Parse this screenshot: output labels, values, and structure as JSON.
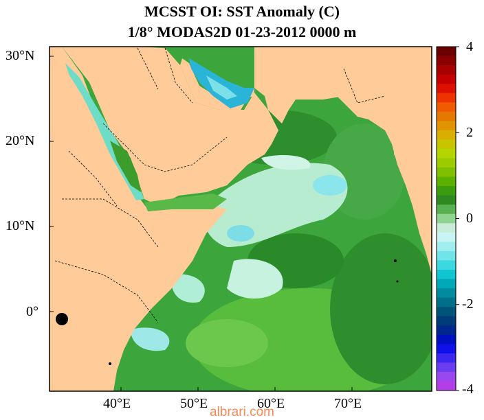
{
  "title_line1": "MCSST OI:  SST Anomaly (C)",
  "title_line2": "1/8° MODAS2D 01-23-2012 0000 m",
  "lat_labels": [
    "30°N",
    "20°N",
    "10°N",
    "0°"
  ],
  "lon_labels": [
    "40°E",
    "50°E",
    "60°E",
    "70°E"
  ],
  "colorbar": {
    "labels": [
      "4",
      "2",
      "0",
      "-2",
      "-4"
    ],
    "min": -4,
    "max": 4,
    "colors": [
      "#6a0000",
      "#8a0000",
      "#a80000",
      "#c40000",
      "#dd1000",
      "#ee3300",
      "#f05a00",
      "#e47800",
      "#e09400",
      "#d8ae00",
      "#c8c400",
      "#b4d600",
      "#9ccc00",
      "#80c000",
      "#5cb000",
      "#3c9c10",
      "#2e8a20",
      "#58b050",
      "#90d290",
      "#c8ecd8",
      "#c8f4f4",
      "#a0eeee",
      "#70e4e8",
      "#3cd8e0",
      "#10c4d0",
      "#00a8b8",
      "#008c9e",
      "#007088",
      "#005478",
      "#003c78",
      "#00288c",
      "#0010c0",
      "#1010e8",
      "#3a28f0",
      "#6a3ef0",
      "#9a48ee",
      "#b23ee8"
    ],
    "color_meaning": {
      "land": "#ffcc99",
      "positive": "red",
      "negative": "purple"
    }
  },
  "watermark": "albrari.com"
}
